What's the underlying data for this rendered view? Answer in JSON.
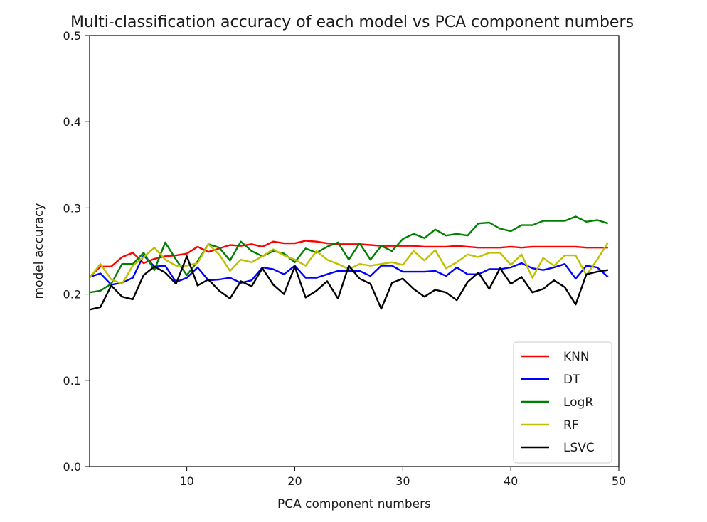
{
  "chart_data": {
    "type": "line",
    "title": "Multi-classification accuracy of each model vs PCA component numbers",
    "xlabel": "PCA component numbers",
    "ylabel": "model accuracy",
    "xlim": [
      1,
      50
    ],
    "ylim": [
      0.0,
      0.5
    ],
    "xticks": [
      10,
      20,
      30,
      40,
      50
    ],
    "xtick_labels": [
      "10",
      "20",
      "30",
      "40",
      "50"
    ],
    "yticks": [
      0.0,
      0.1,
      0.2,
      0.3,
      0.4,
      0.5
    ],
    "ytick_labels": [
      "0.0",
      "0.1",
      "0.2",
      "0.3",
      "0.4",
      "0.5"
    ],
    "grid": false,
    "legend_position": "bottom-right",
    "x": [
      1,
      2,
      3,
      4,
      5,
      6,
      7,
      8,
      9,
      10,
      11,
      12,
      13,
      14,
      15,
      16,
      17,
      18,
      19,
      20,
      21,
      22,
      23,
      24,
      25,
      26,
      27,
      28,
      29,
      30,
      31,
      32,
      33,
      34,
      35,
      36,
      37,
      38,
      39,
      40,
      41,
      42,
      43,
      44,
      45,
      46,
      47,
      48,
      49
    ],
    "series": [
      {
        "name": "KNN",
        "color": "#ff0000",
        "values": [
          0.22,
          0.232,
          0.232,
          0.243,
          0.248,
          0.236,
          0.241,
          0.244,
          0.245,
          0.247,
          0.255,
          0.249,
          0.253,
          0.257,
          0.256,
          0.258,
          0.255,
          0.261,
          0.259,
          0.259,
          0.262,
          0.261,
          0.259,
          0.258,
          0.258,
          0.258,
          0.257,
          0.256,
          0.256,
          0.256,
          0.256,
          0.255,
          0.255,
          0.255,
          0.256,
          0.255,
          0.254,
          0.254,
          0.254,
          0.255,
          0.254,
          0.255,
          0.255,
          0.255,
          0.255,
          0.255,
          0.254,
          0.254,
          0.254
        ]
      },
      {
        "name": "DT",
        "color": "#0000ff",
        "values": [
          0.22,
          0.224,
          0.211,
          0.213,
          0.219,
          0.245,
          0.232,
          0.233,
          0.214,
          0.219,
          0.231,
          0.216,
          0.217,
          0.219,
          0.213,
          0.216,
          0.231,
          0.229,
          0.223,
          0.233,
          0.219,
          0.219,
          0.223,
          0.227,
          0.227,
          0.227,
          0.221,
          0.233,
          0.233,
          0.226,
          0.226,
          0.226,
          0.227,
          0.221,
          0.231,
          0.223,
          0.223,
          0.229,
          0.229,
          0.231,
          0.236,
          0.23,
          0.228,
          0.231,
          0.235,
          0.218,
          0.233,
          0.231,
          0.22
        ]
      },
      {
        "name": "LogR",
        "color": "#008000",
        "values": [
          0.202,
          0.204,
          0.212,
          0.235,
          0.235,
          0.248,
          0.228,
          0.26,
          0.24,
          0.222,
          0.238,
          0.258,
          0.254,
          0.239,
          0.261,
          0.25,
          0.244,
          0.25,
          0.247,
          0.237,
          0.253,
          0.248,
          0.255,
          0.26,
          0.24,
          0.259,
          0.24,
          0.256,
          0.25,
          0.264,
          0.27,
          0.265,
          0.275,
          0.268,
          0.27,
          0.268,
          0.282,
          0.283,
          0.276,
          0.273,
          0.28,
          0.28,
          0.285,
          0.285,
          0.285,
          0.29,
          0.284,
          0.286,
          0.282
        ]
      },
      {
        "name": "RF",
        "color": "#bfbf00",
        "values": [
          0.219,
          0.235,
          0.217,
          0.212,
          0.233,
          0.243,
          0.254,
          0.24,
          0.233,
          0.233,
          0.236,
          0.258,
          0.246,
          0.227,
          0.24,
          0.237,
          0.244,
          0.252,
          0.245,
          0.24,
          0.233,
          0.25,
          0.24,
          0.235,
          0.229,
          0.235,
          0.233,
          0.235,
          0.237,
          0.234,
          0.25,
          0.239,
          0.251,
          0.23,
          0.237,
          0.246,
          0.243,
          0.248,
          0.248,
          0.234,
          0.246,
          0.219,
          0.242,
          0.233,
          0.245,
          0.245,
          0.222,
          0.24,
          0.26
        ]
      },
      {
        "name": "LSVC",
        "color": "#000000",
        "values": [
          0.182,
          0.185,
          0.21,
          0.197,
          0.194,
          0.222,
          0.232,
          0.225,
          0.212,
          0.244,
          0.21,
          0.217,
          0.204,
          0.195,
          0.215,
          0.209,
          0.23,
          0.211,
          0.2,
          0.232,
          0.196,
          0.204,
          0.215,
          0.195,
          0.233,
          0.218,
          0.212,
          0.183,
          0.213,
          0.218,
          0.206,
          0.197,
          0.205,
          0.202,
          0.193,
          0.214,
          0.225,
          0.206,
          0.23,
          0.212,
          0.22,
          0.202,
          0.206,
          0.216,
          0.208,
          0.188,
          0.223,
          0.226,
          0.228
        ]
      }
    ]
  }
}
